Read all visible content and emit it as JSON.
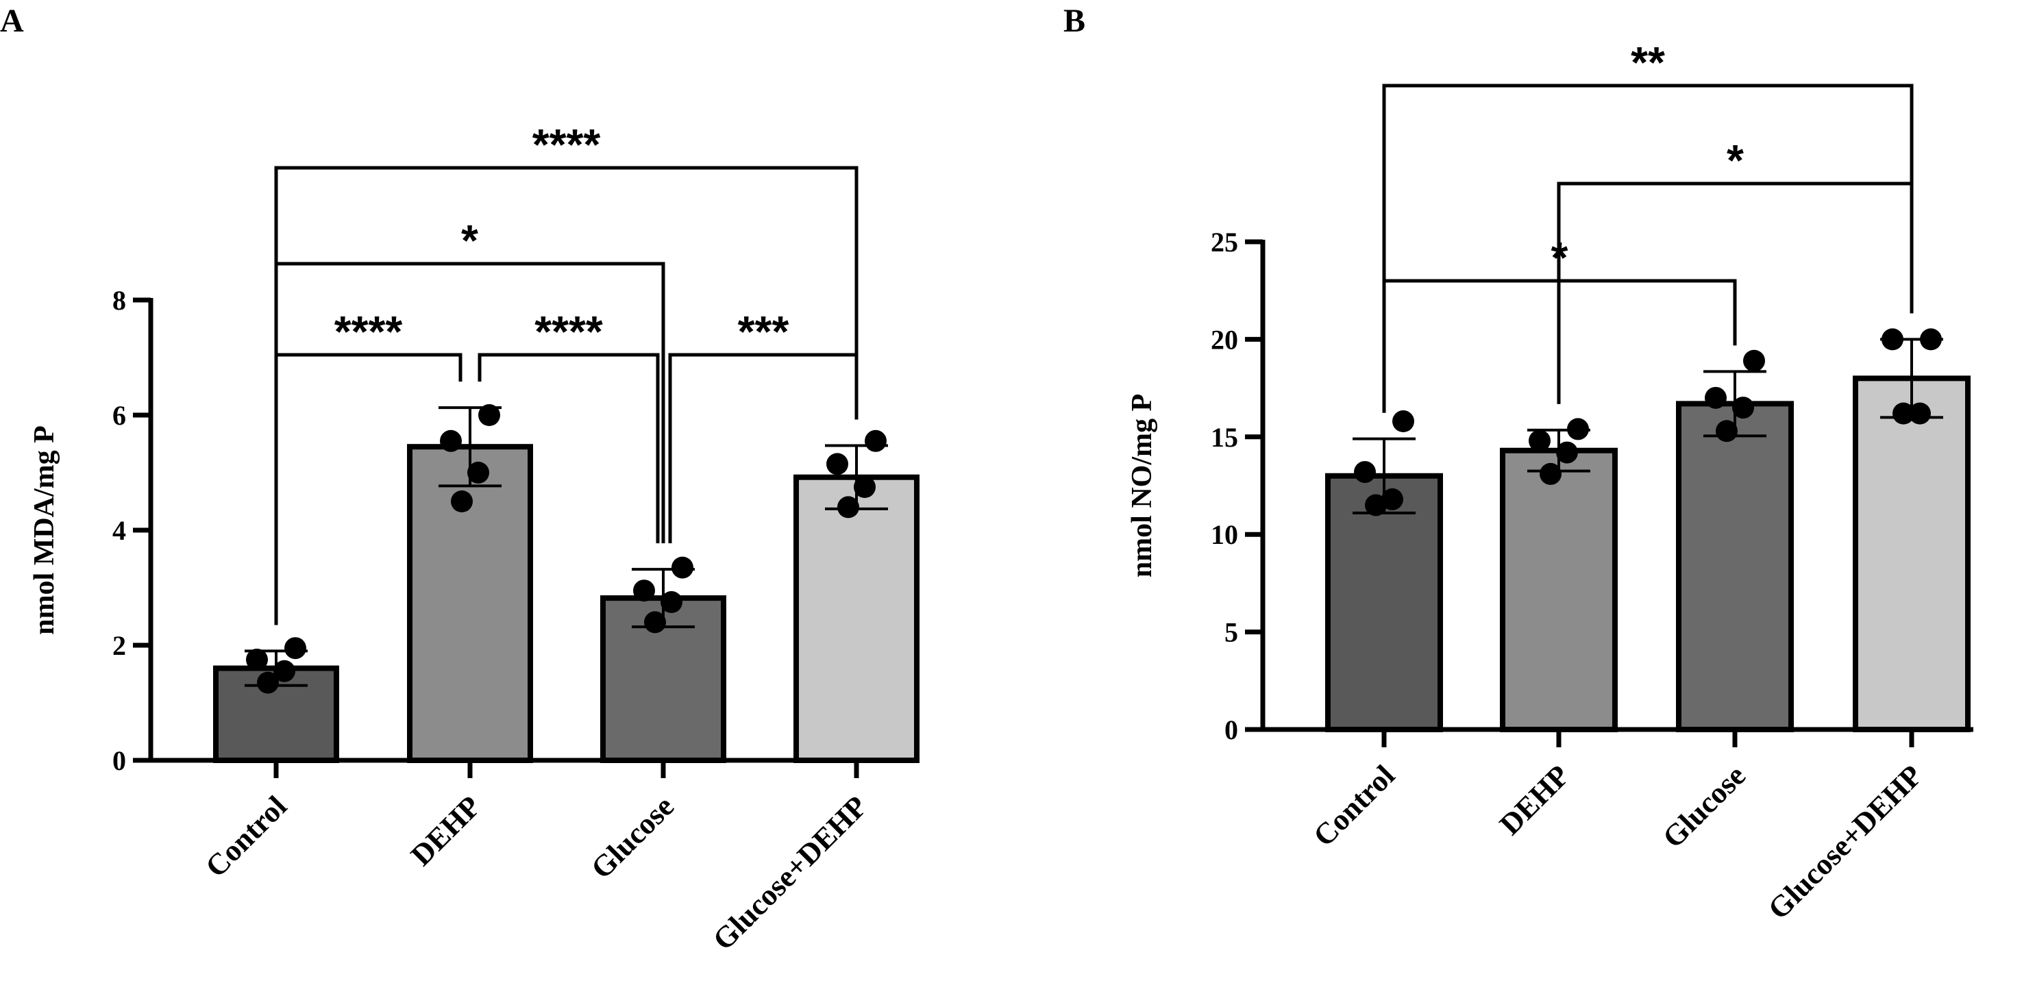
{
  "figure": {
    "panels": [
      {
        "letter": "A",
        "ylabel": "nmol MDA/mg P",
        "ylim": [
          0,
          8
        ],
        "yticks": [
          "0",
          "2",
          "4",
          "6",
          "8"
        ],
        "categories": [
          "Control",
          "DEHP",
          "Glucose",
          "Glucose+DEHP"
        ]
      },
      {
        "letter": "B",
        "ylabel": "nmol NO/mg P",
        "ylim": [
          0,
          25
        ],
        "yticks": [
          "0",
          "5",
          "10",
          "15",
          "20",
          "25"
        ],
        "categories": [
          "Control",
          "DEHP",
          "Glucose",
          "Glucose+DEHP"
        ]
      }
    ]
  },
  "chart_data": [
    {
      "type": "bar",
      "panel": "A",
      "categories": [
        "Control",
        "DEHP",
        "Glucose",
        "Glucose+DEHP"
      ],
      "values": [
        1.6,
        5.45,
        2.82,
        4.92
      ],
      "errors": [
        0.3,
        0.68,
        0.5,
        0.55
      ],
      "points": [
        [
          1.95,
          1.75,
          1.55,
          1.35
        ],
        [
          6.0,
          5.55,
          5.0,
          4.5
        ],
        [
          3.35,
          2.95,
          2.75,
          2.4
        ],
        [
          5.55,
          5.15,
          4.75,
          4.4
        ]
      ],
      "bar_colors": [
        "#595959",
        "#8c8c8c",
        "#6a6a6a",
        "#c8c8c8"
      ],
      "ylabel": "nmol MDA/mg P",
      "ylim": [
        0,
        8
      ],
      "grid": false,
      "significance": [
        {
          "from": 0,
          "to": 1,
          "label": "****"
        },
        {
          "from": 1,
          "to": 2,
          "label": "****"
        },
        {
          "from": 2,
          "to": 3,
          "label": "***"
        },
        {
          "from": 0,
          "to": 2,
          "label": "*"
        },
        {
          "from": 0,
          "to": 3,
          "label": "****"
        }
      ]
    },
    {
      "type": "bar",
      "panel": "B",
      "categories": [
        "Control",
        "DEHP",
        "Glucose",
        "Glucose+DEHP"
      ],
      "values": [
        13.0,
        14.3,
        16.7,
        18.0
      ],
      "errors": [
        1.9,
        1.05,
        1.65,
        2.0
      ],
      "points": [
        [
          15.8,
          13.2,
          11.8,
          11.5
        ],
        [
          15.4,
          14.8,
          14.2,
          13.1
        ],
        [
          18.9,
          17.0,
          16.5,
          15.3
        ],
        [
          20.0,
          20.0,
          16.2,
          16.2
        ]
      ],
      "bar_colors": [
        "#595959",
        "#8c8c8c",
        "#6a6a6a",
        "#c8c8c8"
      ],
      "ylabel": "nmol NO/mg P",
      "ylim": [
        0,
        25
      ],
      "grid": false,
      "significance": [
        {
          "from": 0,
          "to": 2,
          "label": "*"
        },
        {
          "from": 1,
          "to": 3,
          "label": "*"
        },
        {
          "from": 0,
          "to": 3,
          "label": "**"
        }
      ]
    }
  ]
}
